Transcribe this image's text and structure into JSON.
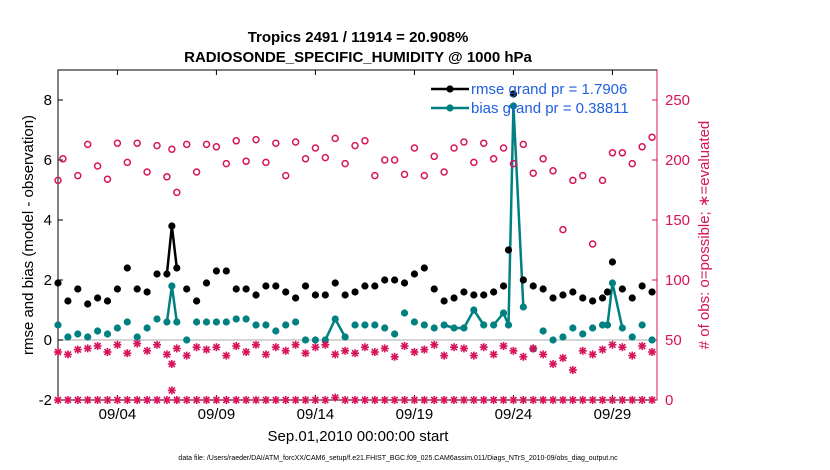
{
  "chart_data": {
    "type": "line",
    "title": "Tropics 2491 / 11914 = 20.908%",
    "subtitle": "RADIOSONDE_SPECIFIC_HUMIDITY @ 1000 hPa",
    "xlabel": "Sep.01,2010 00:00:00 start",
    "ylabel": "rmse and bias (model - observation)",
    "ylabel_right": "# of obs: o=possible; ∗=evaluated",
    "footer": "data file: /Users/raeder/DAI/ATM_forcXX/CAM6_setup/f.e21.FHIST_BGC.f09_025.CAM6assim.011/Diags_NTrS_2010-09/obs_diag_output.nc",
    "xlim": [
      1.0,
      31.25
    ],
    "ylim": [
      -2,
      9
    ],
    "ylim_right": [
      0,
      275
    ],
    "x_tick_values": [
      4,
      9,
      14,
      19,
      24,
      29
    ],
    "x_tick_labels": [
      "09/04",
      "09/09",
      "09/14",
      "09/19",
      "09/24",
      "09/29"
    ],
    "y_ticks": [
      -2,
      0,
      2,
      4,
      6,
      8
    ],
    "y_ticks_right": [
      0,
      50,
      100,
      150,
      200,
      250
    ],
    "colors": {
      "rmse": "#000000",
      "bias": "#008080",
      "obs": "#d6145c",
      "legend_text": "#1f5fe0",
      "zero_line": "#bbbbbb"
    },
    "legend": [
      {
        "name": "rmse grand pr = 1.7906",
        "color": "#000000"
      },
      {
        "name": "bias grand pr = 0.38811",
        "color": "#008080"
      }
    ],
    "series": [
      {
        "name": "rmse",
        "line_segments": [
          [
            6.5,
            7.0
          ]
        ],
        "x": [
          1.0,
          1.5,
          2.0,
          2.5,
          3.0,
          3.5,
          4.0,
          4.5,
          5.0,
          5.5,
          6.0,
          6.5,
          6.75,
          7.0,
          7.5,
          8.0,
          8.5,
          9.0,
          9.5,
          10.0,
          10.5,
          11.0,
          11.5,
          12.0,
          12.5,
          13.0,
          13.5,
          14.0,
          14.5,
          15.0,
          15.5,
          16.0,
          16.5,
          17.0,
          17.5,
          18.0,
          18.5,
          19.0,
          19.5,
          20.0,
          20.5,
          21.0,
          21.5,
          22.0,
          22.5,
          23.0,
          23.5,
          23.75,
          24.0,
          24.5,
          25.0,
          25.5,
          26.0,
          26.5,
          27.0,
          27.5,
          28.0,
          28.5,
          28.75,
          29.0,
          29.5,
          30.0,
          30.5,
          31.0
        ],
        "values": [
          1.9,
          1.3,
          1.7,
          1.2,
          1.4,
          1.3,
          1.7,
          2.4,
          1.7,
          1.6,
          2.2,
          2.2,
          3.8,
          2.4,
          1.7,
          1.3,
          1.9,
          2.3,
          2.3,
          1.7,
          1.7,
          1.5,
          1.8,
          1.8,
          1.6,
          1.4,
          1.8,
          1.5,
          1.5,
          1.9,
          1.5,
          1.6,
          1.8,
          1.8,
          2.0,
          2.0,
          1.9,
          2.2,
          2.4,
          1.7,
          1.3,
          1.4,
          1.6,
          1.5,
          1.5,
          1.6,
          1.8,
          3.0,
          8.2,
          2.0,
          1.8,
          1.7,
          1.4,
          1.5,
          1.6,
          1.4,
          1.3,
          1.4,
          1.6,
          2.6,
          1.7,
          1.4,
          1.8,
          1.6
        ]
      },
      {
        "name": "bias",
        "line_segments": [
          [
            6.5,
            7.0
          ],
          [
            14.5,
            15.5
          ],
          [
            20.5,
            22.5
          ],
          [
            23.0,
            24.5
          ],
          [
            28.5,
            29.5
          ]
        ],
        "x": [
          1.0,
          1.5,
          2.0,
          2.5,
          3.0,
          3.5,
          4.0,
          4.5,
          5.0,
          5.5,
          6.0,
          6.5,
          6.75,
          7.0,
          7.5,
          8.0,
          8.5,
          9.0,
          9.5,
          10.0,
          10.5,
          11.0,
          11.5,
          12.0,
          12.5,
          13.0,
          13.5,
          14.0,
          14.5,
          15.0,
          15.5,
          16.0,
          16.5,
          17.0,
          17.5,
          18.0,
          18.5,
          19.0,
          19.5,
          20.0,
          20.5,
          21.0,
          21.5,
          22.0,
          22.5,
          23.0,
          23.5,
          23.75,
          24.0,
          24.5,
          25.0,
          25.5,
          26.0,
          26.5,
          27.0,
          27.5,
          28.0,
          28.5,
          28.75,
          29.0,
          29.5,
          30.0,
          30.5,
          31.0
        ],
        "values": [
          0.5,
          0.1,
          0.2,
          0.1,
          0.3,
          0.2,
          0.4,
          0.6,
          0.1,
          0.4,
          0.7,
          0.6,
          1.8,
          0.6,
          0.0,
          0.6,
          0.6,
          0.6,
          0.6,
          0.7,
          0.7,
          0.5,
          0.5,
          0.3,
          0.5,
          0.6,
          0.0,
          0.0,
          0.0,
          0.7,
          0.1,
          0.5,
          0.5,
          0.5,
          0.4,
          0.2,
          0.9,
          0.6,
          0.5,
          0.4,
          0.5,
          0.4,
          0.4,
          1.0,
          0.5,
          0.5,
          0.9,
          0.5,
          7.8,
          1.1,
          -0.3,
          0.3,
          0.0,
          0.1,
          0.4,
          0.2,
          0.4,
          0.5,
          0.5,
          1.9,
          0.4,
          0.1,
          0.5,
          0.0
        ]
      },
      {
        "name": "obs_possible",
        "axis": "right",
        "x": [
          1.0,
          1.25,
          2.0,
          2.5,
          3.0,
          3.5,
          4.0,
          4.5,
          5.0,
          5.5,
          6.0,
          6.5,
          6.75,
          7.0,
          7.5,
          8.0,
          8.5,
          9.0,
          9.5,
          10.0,
          10.5,
          11.0,
          11.5,
          12.0,
          12.5,
          13.0,
          13.5,
          14.0,
          14.5,
          15.0,
          15.5,
          16.0,
          16.5,
          17.0,
          17.5,
          18.0,
          18.5,
          19.0,
          19.5,
          20.0,
          20.5,
          21.0,
          21.5,
          22.0,
          22.5,
          23.0,
          23.5,
          24.0,
          24.5,
          25.0,
          25.5,
          26.0,
          26.5,
          27.0,
          27.5,
          28.0,
          28.5,
          29.0,
          29.5,
          30.0,
          30.5,
          31.0
        ],
        "values": [
          183,
          201,
          187,
          213,
          195,
          184,
          214,
          198,
          214,
          190,
          212,
          186,
          209,
          173,
          213,
          190,
          213,
          211,
          197,
          216,
          199,
          217,
          198,
          214,
          187,
          215,
          201,
          210,
          202,
          218,
          197,
          212,
          216,
          187,
          200,
          200,
          188,
          210,
          187,
          203,
          190,
          210,
          215,
          198,
          214,
          201,
          210,
          197,
          213,
          189,
          201,
          191,
          142,
          183,
          187,
          130,
          183,
          206,
          206,
          197,
          211,
          219
        ],
        "values_extra_note": ""
      },
      {
        "name": "obs_evaluated",
        "axis": "right",
        "x": [
          1.0,
          1.5,
          2.0,
          2.5,
          3.0,
          3.5,
          4.0,
          4.5,
          5.0,
          5.5,
          6.0,
          6.5,
          6.75,
          7.0,
          7.5,
          8.0,
          8.5,
          9.0,
          9.5,
          10.0,
          10.5,
          11.0,
          11.5,
          12.0,
          12.5,
          13.0,
          13.5,
          14.0,
          14.5,
          15.0,
          15.5,
          16.0,
          16.5,
          17.0,
          17.5,
          18.0,
          18.5,
          19.0,
          19.5,
          20.0,
          20.5,
          21.0,
          21.5,
          22.0,
          22.5,
          23.0,
          23.5,
          24.0,
          24.5,
          25.0,
          25.5,
          26.0,
          26.5,
          27.0,
          27.5,
          28.0,
          28.5,
          29.0,
          29.5,
          30.0,
          30.5,
          31.0
        ],
        "values": [
          40,
          38,
          42,
          43,
          45,
          40,
          46,
          39,
          47,
          41,
          46,
          38,
          30,
          43,
          37,
          44,
          42,
          44,
          37,
          45,
          40,
          46,
          38,
          44,
          41,
          46,
          39,
          44,
          46,
          38,
          41,
          39,
          44,
          40,
          43,
          36,
          45,
          40,
          42,
          46,
          37,
          44,
          43,
          37,
          44,
          38,
          45,
          41,
          36,
          43,
          38,
          30,
          35,
          25,
          41,
          38,
          42,
          46,
          44,
          37,
          45,
          40
        ]
      },
      {
        "name": "obs_evaluated_low",
        "axis": "right",
        "x": [
          1.0,
          1.5,
          2.0,
          2.5,
          3.0,
          3.5,
          4.0,
          4.5,
          5.0,
          5.5,
          6.0,
          6.5,
          6.75,
          7.0,
          7.5,
          8.0,
          8.5,
          9.0,
          9.5,
          10.0,
          10.5,
          11.0,
          11.5,
          12.0,
          12.5,
          13.0,
          13.5,
          14.0,
          14.5,
          15.0,
          15.5,
          16.0,
          16.5,
          17.0,
          17.5,
          18.0,
          18.5,
          19.0,
          19.5,
          20.0,
          20.5,
          21.0,
          21.5,
          22.0,
          22.5,
          23.0,
          23.5,
          24.0,
          24.5,
          25.0,
          25.5,
          26.0,
          26.5,
          27.0,
          27.5,
          28.0,
          28.5,
          29.0,
          29.5,
          30.0,
          30.5,
          31.0
        ],
        "values": [
          0,
          0,
          0,
          0,
          0,
          0,
          0,
          0,
          0,
          0,
          0,
          0,
          8,
          0,
          0,
          0,
          0,
          0,
          0,
          0,
          0,
          0,
          0,
          0,
          0,
          0,
          0,
          0,
          0,
          2,
          0,
          0,
          0,
          0,
          0,
          0,
          0,
          0,
          0,
          0,
          0,
          0,
          0,
          0,
          0,
          0,
          0,
          0,
          0,
          0,
          0,
          0,
          0,
          0,
          0,
          0,
          0,
          0,
          0,
          0,
          0,
          0
        ]
      }
    ]
  }
}
